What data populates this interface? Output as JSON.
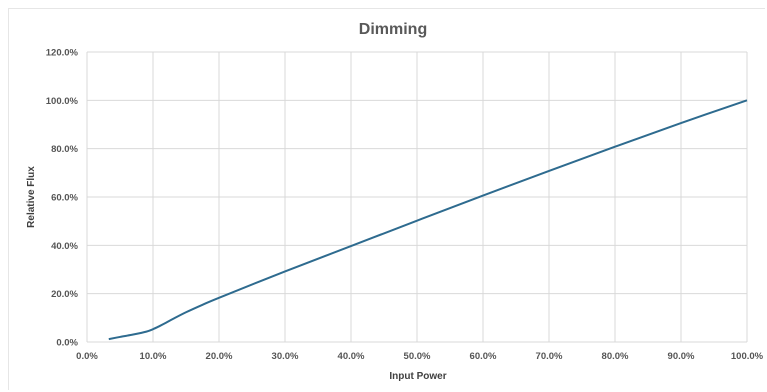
{
  "chart_data": {
    "type": "line",
    "title": "Dimming",
    "xlabel": "Input Power",
    "ylabel": "Relative Flux",
    "xlim": [
      0,
      100
    ],
    "ylim": [
      0,
      120
    ],
    "x_ticks": [
      "0.0%",
      "10.0%",
      "20.0%",
      "30.0%",
      "40.0%",
      "50.0%",
      "60.0%",
      "70.0%",
      "80.0%",
      "90.0%",
      "100.0%"
    ],
    "y_ticks": [
      "0.0%",
      "20.0%",
      "40.0%",
      "60.0%",
      "80.0%",
      "100.0%",
      "120.0%"
    ],
    "grid": true,
    "legend": "none",
    "series": [
      {
        "color": "#2e6b8f",
        "x": [
          3.3,
          5,
          7,
          9,
          10,
          11,
          12,
          13,
          15,
          17.5,
          20,
          30,
          40,
          50,
          60,
          70,
          80,
          90,
          100
        ],
        "y": [
          1.2,
          2.1,
          3.1,
          4.3,
          5.3,
          6.6,
          8.0,
          9.5,
          12.3,
          15.4,
          18.3,
          29.2,
          39.7,
          50.2,
          60.6,
          70.8,
          80.8,
          90.6,
          100
        ]
      }
    ]
  }
}
